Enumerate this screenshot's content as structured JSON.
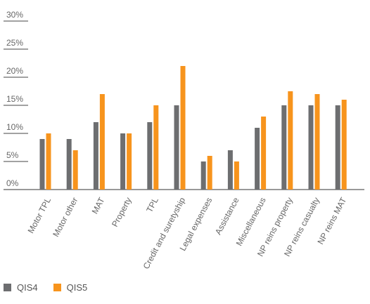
{
  "colors": {
    "qis4": "#6d6e70",
    "qis5": "#f7941d",
    "axis": "#333333",
    "grid": "#444444",
    "text": "#666666"
  },
  "chart_data": {
    "type": "bar",
    "title": "",
    "xlabel": "",
    "ylabel": "",
    "ylim": [
      0,
      30
    ],
    "yticks": [
      0,
      5,
      10,
      15,
      20,
      25,
      30
    ],
    "ytick_labels": [
      "0%",
      "5%",
      "10%",
      "15%",
      "20%",
      "25%",
      "30%"
    ],
    "grid": false,
    "legend_position": "bottom-left",
    "categories": [
      "Motor TPL",
      "Motor other",
      "MAT",
      "Property",
      "TPL",
      "Credit and suretyship",
      "Legal expenses",
      "Assistance",
      "Miscellaneous",
      "NP reins property",
      "NP reins casualty",
      "NP reins MAT"
    ],
    "series": [
      {
        "name": "QIS4",
        "values": [
          9,
          9,
          12,
          10,
          12,
          15,
          5,
          7,
          11,
          15,
          15,
          15
        ]
      },
      {
        "name": "QIS5",
        "values": [
          10,
          7,
          17,
          10,
          15,
          22,
          6,
          5,
          13,
          17.5,
          17,
          16
        ]
      }
    ]
  }
}
